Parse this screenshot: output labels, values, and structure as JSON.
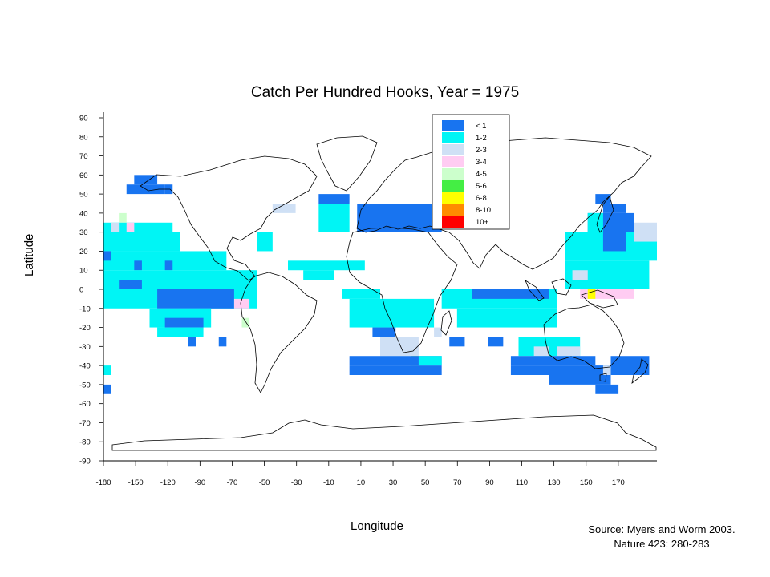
{
  "title": "Catch Per Hundred Hooks, Year =  1975",
  "axes": {
    "ylabel": "Latitude",
    "xlabel": "Longitude",
    "yticks": [
      "90",
      "80",
      "70",
      "60",
      "50",
      "40",
      "30",
      "20",
      "10",
      "0",
      "-10",
      "-20",
      "-30",
      "-40",
      "-50",
      "-60",
      "-70",
      "-80",
      "-90"
    ],
    "xticks": [
      "-180",
      "-150",
      "-120",
      "-90",
      "-70",
      "-50",
      "-30",
      "-10",
      "10",
      "30",
      "50",
      "70",
      "90",
      "110",
      "130",
      "150",
      "170"
    ]
  },
  "legend": {
    "position": "top-right",
    "entries": [
      {
        "label": "< 1",
        "color": "#1874f0"
      },
      {
        "label": "1-2",
        "color": "#00f5f5"
      },
      {
        "label": "2-3",
        "color": "#cfe0f5"
      },
      {
        "label": "3-4",
        "color": "#ffccf2"
      },
      {
        "label": "4-5",
        "color": "#ccffcc"
      },
      {
        "label": "5-6",
        "color": "#44ee44"
      },
      {
        "label": "6-8",
        "color": "#ffff00"
      },
      {
        "label": "8-10",
        "color": "#ff8c00"
      },
      {
        "label": "10+",
        "color": "#ff0000"
      }
    ]
  },
  "source": {
    "line1": "Source: Myers and Worm 2003.",
    "line2": "Nature 423: 280-283"
  },
  "chart_data": {
    "type": "heatmap",
    "title": "Catch Per Hundred Hooks, Year =  1975",
    "xlabel": "Longitude",
    "ylabel": "Latitude",
    "xlim": [
      -180,
      180
    ],
    "ylim": [
      -90,
      90
    ],
    "cell_size_deg": 5,
    "categories": [
      "< 1",
      "1-2",
      "2-3",
      "3-4",
      "4-5",
      "5-6",
      "6-8",
      "8-10",
      "10+"
    ],
    "cells": [
      {
        "lon0": -165,
        "lon1": -150,
        "lat0": 50,
        "lat1": 55,
        "cat": 0
      },
      {
        "lon0": -160,
        "lon1": -145,
        "lat0": 55,
        "lat1": 60,
        "cat": 0
      },
      {
        "lon0": -150,
        "lon1": -140,
        "lat0": 50,
        "lat1": 55,
        "cat": 0
      },
      {
        "lon0": -140,
        "lon1": -135,
        "lat0": 50,
        "lat1": 55,
        "cat": 0
      },
      {
        "lon0": -170,
        "lon1": -165,
        "lat0": 35,
        "lat1": 40,
        "cat": 4
      },
      {
        "lon0": -180,
        "lon1": -135,
        "lat0": 30,
        "lat1": 35,
        "cat": 1
      },
      {
        "lon0": -175,
        "lon1": -170,
        "lat0": 30,
        "lat1": 35,
        "cat": 2
      },
      {
        "lon0": -165,
        "lon1": -160,
        "lat0": 30,
        "lat1": 35,
        "cat": 3
      },
      {
        "lon0": -180,
        "lon1": -130,
        "lat0": 20,
        "lat1": 30,
        "cat": 1
      },
      {
        "lon0": -180,
        "lon1": -100,
        "lat0": 10,
        "lat1": 20,
        "cat": 1
      },
      {
        "lon0": -180,
        "lon1": -175,
        "lat0": 15,
        "lat1": 20,
        "cat": 0
      },
      {
        "lon0": -160,
        "lon1": -155,
        "lat0": 10,
        "lat1": 15,
        "cat": 0
      },
      {
        "lon0": -140,
        "lon1": -135,
        "lat0": 10,
        "lat1": 15,
        "cat": 0
      },
      {
        "lon0": -180,
        "lon1": -80,
        "lat0": -10,
        "lat1": 10,
        "cat": 1
      },
      {
        "lon0": -170,
        "lon1": -155,
        "lat0": 0,
        "lat1": 5,
        "cat": 0
      },
      {
        "lon0": -145,
        "lon1": -95,
        "lat0": -10,
        "lat1": 0,
        "cat": 0
      },
      {
        "lon0": -150,
        "lon1": -110,
        "lat0": -20,
        "lat1": -10,
        "cat": 1
      },
      {
        "lon0": -140,
        "lon1": -115,
        "lat0": -20,
        "lat1": -15,
        "cat": 0
      },
      {
        "lon0": -145,
        "lon1": -115,
        "lat0": -25,
        "lat1": -20,
        "cat": 1
      },
      {
        "lon0": -125,
        "lon1": -120,
        "lat0": -30,
        "lat1": -25,
        "cat": 0
      },
      {
        "lon0": -95,
        "lon1": -85,
        "lat0": -10,
        "lat1": -5,
        "cat": 3
      },
      {
        "lon0": -90,
        "lon1": -85,
        "lat0": -20,
        "lat1": -15,
        "cat": 4
      },
      {
        "lon0": -105,
        "lon1": -100,
        "lat0": -30,
        "lat1": -25,
        "cat": 0
      },
      {
        "lon0": -180,
        "lon1": -175,
        "lat0": -45,
        "lat1": -40,
        "cat": 1
      },
      {
        "lon0": -180,
        "lon1": -175,
        "lat0": -55,
        "lat1": -50,
        "cat": 0
      },
      {
        "lon0": -80,
        "lon1": -70,
        "lat0": 20,
        "lat1": 30,
        "cat": 1
      },
      {
        "lon0": -70,
        "lon1": -55,
        "lat0": 40,
        "lat1": 45,
        "cat": 2
      },
      {
        "lon0": -60,
        "lon1": -10,
        "lat0": 10,
        "lat1": 15,
        "cat": 1
      },
      {
        "lon0": -50,
        "lon1": -30,
        "lat0": 5,
        "lat1": 10,
        "cat": 1
      },
      {
        "lon0": -40,
        "lon1": -20,
        "lat0": 30,
        "lat1": 45,
        "cat": 1
      },
      {
        "lon0": -40,
        "lon1": -20,
        "lat0": 45,
        "lat1": 50,
        "cat": 0
      },
      {
        "lon0": -15,
        "lon1": 40,
        "lat0": 30,
        "lat1": 45,
        "cat": 0
      },
      {
        "lon0": -25,
        "lon1": 0,
        "lat0": -5,
        "lat1": 0,
        "cat": 1
      },
      {
        "lon0": -20,
        "lon1": 35,
        "lat0": -20,
        "lat1": -5,
        "cat": 1
      },
      {
        "lon0": -5,
        "lon1": 10,
        "lat0": -25,
        "lat1": -20,
        "cat": 0
      },
      {
        "lon0": 0,
        "lon1": 25,
        "lat0": -35,
        "lat1": -25,
        "cat": 2
      },
      {
        "lon0": 20,
        "lon1": 25,
        "lat0": -40,
        "lat1": -35,
        "cat": 5
      },
      {
        "lon0": -20,
        "lon1": 40,
        "lat0": -40,
        "lat1": -35,
        "cat": 0
      },
      {
        "lon0": -20,
        "lon1": 40,
        "lat0": -45,
        "lat1": -40,
        "cat": 0
      },
      {
        "lon0": 25,
        "lon1": 40,
        "lat0": -40,
        "lat1": -35,
        "cat": 1
      },
      {
        "lon0": 40,
        "lon1": 115,
        "lat0": -10,
        "lat1": 0,
        "cat": 1
      },
      {
        "lon0": 50,
        "lon1": 115,
        "lat0": -20,
        "lat1": -10,
        "cat": 1
      },
      {
        "lon0": 60,
        "lon1": 110,
        "lat0": -5,
        "lat1": 0,
        "cat": 0
      },
      {
        "lon0": 35,
        "lon1": 40,
        "lat0": -25,
        "lat1": -20,
        "cat": 2
      },
      {
        "lon0": 45,
        "lon1": 55,
        "lat0": -30,
        "lat1": -25,
        "cat": 0
      },
      {
        "lon0": 70,
        "lon1": 80,
        "lat0": -30,
        "lat1": -25,
        "cat": 0
      },
      {
        "lon0": 90,
        "lon1": 130,
        "lat0": -35,
        "lat1": -25,
        "cat": 1
      },
      {
        "lon0": 100,
        "lon1": 110,
        "lat0": -35,
        "lat1": -30,
        "cat": 2
      },
      {
        "lon0": 115,
        "lon1": 130,
        "lat0": -35,
        "lat1": -30,
        "cat": 2
      },
      {
        "lon0": 85,
        "lon1": 140,
        "lat0": -40,
        "lat1": -35,
        "cat": 0
      },
      {
        "lon0": 85,
        "lon1": 150,
        "lat0": -45,
        "lat1": -40,
        "cat": 0
      },
      {
        "lon0": 110,
        "lon1": 150,
        "lat0": -50,
        "lat1": -45,
        "cat": 0
      },
      {
        "lon0": 140,
        "lon1": 155,
        "lat0": -55,
        "lat1": -50,
        "cat": 0
      },
      {
        "lon0": 150,
        "lon1": 175,
        "lat0": -45,
        "lat1": -35,
        "cat": 0
      },
      {
        "lon0": 145,
        "lon1": 150,
        "lat0": -45,
        "lat1": -40,
        "cat": 2
      },
      {
        "lon0": 130,
        "lon1": 165,
        "lat0": -5,
        "lat1": 0,
        "cat": 3
      },
      {
        "lon0": 135,
        "lon1": 140,
        "lat0": -5,
        "lat1": 0,
        "cat": 6
      },
      {
        "lon0": 120,
        "lon1": 175,
        "lat0": 0,
        "lat1": 15,
        "cat": 1
      },
      {
        "lon0": 125,
        "lon1": 135,
        "lat0": 5,
        "lat1": 10,
        "cat": 2
      },
      {
        "lon0": 120,
        "lon1": 180,
        "lat0": 15,
        "lat1": 30,
        "cat": 1
      },
      {
        "lon0": 145,
        "lon1": 160,
        "lat0": 20,
        "lat1": 30,
        "cat": 0
      },
      {
        "lon0": 135,
        "lon1": 165,
        "lat0": 30,
        "lat1": 40,
        "cat": 0
      },
      {
        "lon0": 165,
        "lon1": 180,
        "lat0": 25,
        "lat1": 35,
        "cat": 2
      },
      {
        "lon0": 145,
        "lon1": 160,
        "lat0": 40,
        "lat1": 45,
        "cat": 0
      },
      {
        "lon0": 140,
        "lon1": 150,
        "lat0": 45,
        "lat1": 50,
        "cat": 0
      },
      {
        "lon0": 135,
        "lon1": 145,
        "lat0": 30,
        "lat1": 40,
        "cat": 1
      }
    ]
  }
}
